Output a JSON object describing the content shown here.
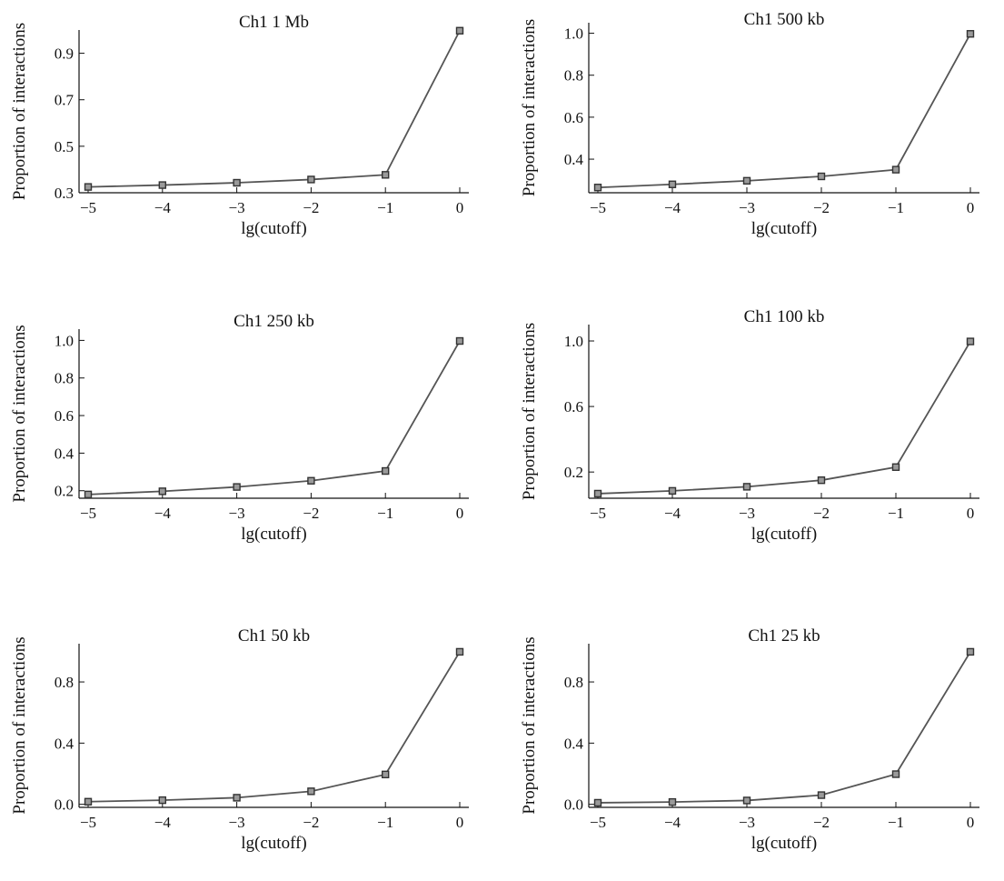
{
  "chart_data": [
    {
      "type": "line",
      "title": "Ch1 1 Mb",
      "xlabel": "lg(cutoff)",
      "ylabel": "Proportion of interactions",
      "x": [
        -5,
        -4,
        -3,
        -2,
        -1,
        0
      ],
      "series": [
        {
          "values": [
            0.325,
            0.333,
            0.343,
            0.357,
            0.377,
            0.997
          ]
        }
      ],
      "xlim": [
        -5,
        0
      ],
      "ylim": [
        0.3,
        1.0
      ],
      "xticks": [
        -5,
        -4,
        -3,
        -2,
        -1,
        0
      ],
      "yticks": [
        0.3,
        0.5,
        0.7,
        0.9
      ],
      "ytick_labels": [
        "0.3",
        "0.5",
        "0.7",
        "0.9"
      ],
      "grid": false
    },
    {
      "type": "line",
      "title": "Ch1 500 kb",
      "xlabel": "lg(cutoff)",
      "ylabel": "Proportion of interactions",
      "x": [
        -5,
        -4,
        -3,
        -2,
        -1,
        0
      ],
      "series": [
        {
          "values": [
            0.265,
            0.28,
            0.297,
            0.318,
            0.35,
            0.997
          ]
        }
      ],
      "xlim": [
        -5,
        0
      ],
      "ylim": [
        0.24,
        1.05
      ],
      "xticks": [
        -5,
        -4,
        -3,
        -2,
        -1,
        0
      ],
      "yticks": [
        0.4,
        0.6,
        0.8,
        1.0
      ],
      "ytick_labels": [
        "0.4",
        "0.6",
        "0.8",
        "1.0"
      ],
      "grid": false
    },
    {
      "type": "line",
      "title": "Ch1 250 kb",
      "xlabel": "lg(cutoff)",
      "ylabel": "Proportion of interactions",
      "x": [
        -5,
        -4,
        -3,
        -2,
        -1,
        0
      ],
      "series": [
        {
          "values": [
            0.18,
            0.197,
            0.22,
            0.253,
            0.305,
            0.997
          ]
        }
      ],
      "xlim": [
        -5,
        0
      ],
      "ylim": [
        0.16,
        1.06
      ],
      "xticks": [
        -5,
        -4,
        -3,
        -2,
        -1,
        0
      ],
      "yticks": [
        0.2,
        0.4,
        0.6,
        0.8,
        1.0
      ],
      "ytick_labels": [
        "0.2",
        "0.4",
        "0.6",
        "0.8",
        "1.0"
      ],
      "grid": false
    },
    {
      "type": "line",
      "title": "Ch1 100 kb",
      "xlabel": "lg(cutoff)",
      "ylabel": "Proportion of interactions",
      "x": [
        -5,
        -4,
        -3,
        -2,
        -1,
        0
      ],
      "series": [
        {
          "values": [
            0.068,
            0.085,
            0.11,
            0.15,
            0.23,
            0.997
          ]
        }
      ],
      "xlim": [
        -5,
        0
      ],
      "ylim": [
        0.04,
        1.1
      ],
      "xticks": [
        -5,
        -4,
        -3,
        -2,
        -1,
        0
      ],
      "yticks": [
        0.2,
        0.6,
        1.0
      ],
      "ytick_labels": [
        "0.2",
        "0.6",
        "1.0"
      ],
      "grid": false
    },
    {
      "type": "line",
      "title": "Ch1 50 kb",
      "xlabel": "lg(cutoff)",
      "ylabel": "Proportion of interactions",
      "x": [
        -5,
        -4,
        -3,
        -2,
        -1,
        0
      ],
      "series": [
        {
          "values": [
            0.017,
            0.027,
            0.043,
            0.085,
            0.195,
            0.997
          ]
        }
      ],
      "xlim": [
        -5,
        0
      ],
      "ylim": [
        -0.02,
        1.05
      ],
      "xticks": [
        -5,
        -4,
        -3,
        -2,
        -1,
        0
      ],
      "yticks": [
        0.0,
        0.4,
        0.8
      ],
      "ytick_labels": [
        "0.0",
        "0.4",
        "0.8"
      ],
      "grid": false
    },
    {
      "type": "line",
      "title": "Ch1 25 kb",
      "xlabel": "lg(cutoff)",
      "ylabel": "Proportion of interactions",
      "x": [
        -5,
        -4,
        -3,
        -2,
        -1,
        0
      ],
      "series": [
        {
          "values": [
            0.01,
            0.015,
            0.025,
            0.06,
            0.197,
            0.997
          ]
        }
      ],
      "xlim": [
        -5,
        0
      ],
      "ylim": [
        -0.02,
        1.05
      ],
      "xticks": [
        -5,
        -4,
        -3,
        -2,
        -1,
        0
      ],
      "yticks": [
        0.0,
        0.4,
        0.8
      ],
      "ytick_labels": [
        "0.0",
        "0.4",
        "0.8"
      ],
      "grid": false
    }
  ],
  "colors": {
    "line": "#555555",
    "marker_fill": "#9a9a9a",
    "marker_edge": "#333333",
    "axis": "#111111"
  }
}
